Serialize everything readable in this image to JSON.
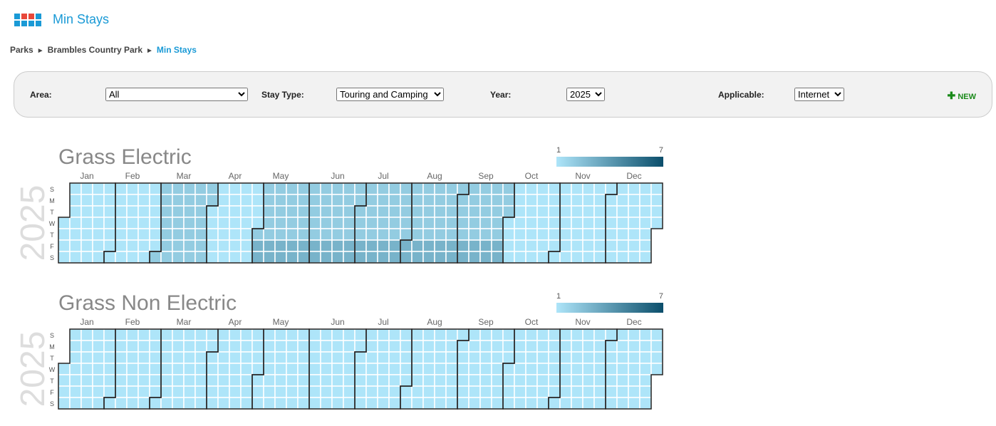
{
  "header": {
    "title": "Min Stays"
  },
  "breadcrumb": {
    "items": [
      "Parks",
      "Brambles Country Park",
      "Min Stays"
    ],
    "separator": "►"
  },
  "filters": [
    {
      "label": "Area:",
      "value": "All"
    },
    {
      "label": "Stay Type:",
      "value": "Touring and Camping"
    },
    {
      "label": "Year:",
      "value": "2025"
    },
    {
      "label": "Applicable:",
      "value": "Internet"
    }
  ],
  "new_button": {
    "label": "NEW"
  },
  "chart_data": [
    {
      "type": "calendar-heatmap",
      "title": "Grass Electric",
      "year": 2025,
      "weekdays": [
        "S",
        "M",
        "T",
        "W",
        "T",
        "F",
        "S"
      ],
      "scale": {
        "min": 1,
        "max": 7,
        "colors": [
          "#aee5f9",
          "#0b4e6b"
        ]
      },
      "months": [
        {
          "name": "Jan",
          "values": [
            1,
            1,
            1,
            1,
            1,
            1,
            1,
            1,
            1,
            1,
            1,
            1,
            1,
            1,
            1,
            1,
            1,
            1,
            1,
            1,
            1,
            1,
            1,
            1,
            1,
            1,
            1,
            1,
            1,
            1,
            1
          ]
        },
        {
          "name": "Feb",
          "values": [
            1,
            1,
            1,
            1,
            1,
            1,
            1,
            1,
            1,
            1,
            1,
            1,
            1,
            1,
            1,
            1,
            1,
            1,
            1,
            1,
            1,
            1,
            1,
            1,
            1,
            1,
            1,
            1
          ]
        },
        {
          "name": "Mar",
          "values": [
            2,
            2,
            2,
            2,
            2,
            2,
            2,
            2,
            2,
            2,
            2,
            2,
            2,
            2,
            2,
            2,
            2,
            2,
            2,
            2,
            2,
            2,
            2,
            2,
            2,
            2,
            2,
            2,
            2,
            2,
            2
          ]
        },
        {
          "name": "Apr",
          "values": [
            1,
            1,
            1,
            1,
            1,
            1,
            1,
            1,
            1,
            1,
            1,
            1,
            1,
            1,
            1,
            1,
            1,
            1,
            1,
            1,
            1,
            1,
            1,
            1,
            1,
            1,
            1,
            1,
            1,
            1
          ]
        },
        {
          "name": "May",
          "values": [
            2,
            3,
            3,
            2,
            2,
            2,
            2,
            2,
            3,
            3,
            2,
            2,
            2,
            2,
            2,
            3,
            3,
            2,
            2,
            2,
            2,
            2,
            3,
            3,
            2,
            2,
            2,
            2,
            2,
            3,
            3
          ]
        },
        {
          "name": "Jun",
          "values": [
            2,
            2,
            2,
            2,
            2,
            3,
            3,
            2,
            2,
            2,
            2,
            2,
            3,
            3,
            2,
            2,
            2,
            2,
            2,
            3,
            3,
            2,
            2,
            2,
            2,
            2,
            3,
            3,
            2,
            2
          ]
        },
        {
          "name": "Jul",
          "values": [
            2,
            2,
            2,
            3,
            3,
            2,
            2,
            2,
            2,
            2,
            3,
            3,
            2,
            2,
            2,
            2,
            2,
            3,
            3,
            2,
            2,
            2,
            2,
            2,
            3,
            3,
            2,
            2,
            2,
            2,
            2
          ]
        },
        {
          "name": "Aug",
          "values": [
            3,
            3,
            2,
            2,
            2,
            2,
            2,
            3,
            3,
            2,
            2,
            2,
            2,
            2,
            3,
            3,
            2,
            2,
            2,
            2,
            2,
            3,
            3,
            2,
            2,
            2,
            2,
            2,
            3,
            3,
            2
          ]
        },
        {
          "name": "Sep",
          "values": [
            2,
            2,
            2,
            2,
            3,
            3,
            2,
            2,
            2,
            2,
            2,
            3,
            3,
            2,
            2,
            2,
            2,
            2,
            3,
            3,
            2,
            2,
            2,
            2,
            2,
            3,
            3,
            2,
            2,
            2
          ]
        },
        {
          "name": "Oct",
          "values": [
            1,
            1,
            1,
            1,
            1,
            1,
            1,
            1,
            1,
            1,
            1,
            1,
            1,
            1,
            1,
            1,
            1,
            1,
            1,
            1,
            1,
            1,
            1,
            1,
            1,
            1,
            1,
            1,
            1,
            1,
            1
          ]
        },
        {
          "name": "Nov",
          "values": [
            1,
            1,
            1,
            1,
            1,
            1,
            1,
            1,
            1,
            1,
            1,
            1,
            1,
            1,
            1,
            1,
            1,
            1,
            1,
            1,
            1,
            1,
            1,
            1,
            1,
            1,
            1,
            1,
            1,
            1
          ]
        },
        {
          "name": "Dec",
          "values": [
            1,
            1,
            1,
            1,
            1,
            1,
            1,
            1,
            1,
            1,
            1,
            1,
            1,
            1,
            1,
            1,
            1,
            1,
            1,
            1,
            1,
            1,
            1,
            1,
            1,
            1,
            1,
            1,
            1,
            1,
            1
          ]
        }
      ]
    },
    {
      "type": "calendar-heatmap",
      "title": "Grass Non Electric",
      "year": 2025,
      "weekdays": [
        "S",
        "M",
        "T",
        "W",
        "T",
        "F",
        "S"
      ],
      "scale": {
        "min": 1,
        "max": 7,
        "colors": [
          "#aee5f9",
          "#0b4e6b"
        ]
      },
      "months": [
        {
          "name": "Jan",
          "values": [
            1,
            1,
            1,
            1,
            1,
            1,
            1,
            1,
            1,
            1,
            1,
            1,
            1,
            1,
            1,
            1,
            1,
            1,
            1,
            1,
            1,
            1,
            1,
            1,
            1,
            1,
            1,
            1,
            1,
            1,
            1
          ]
        },
        {
          "name": "Feb",
          "values": [
            1,
            1,
            1,
            1,
            1,
            1,
            1,
            1,
            1,
            1,
            1,
            1,
            1,
            1,
            1,
            1,
            1,
            1,
            1,
            1,
            1,
            1,
            1,
            1,
            1,
            1,
            1,
            1
          ]
        },
        {
          "name": "Mar",
          "values": [
            1,
            1,
            1,
            1,
            1,
            1,
            1,
            1,
            1,
            1,
            1,
            1,
            1,
            1,
            1,
            1,
            1,
            1,
            1,
            1,
            1,
            1,
            1,
            1,
            1,
            1,
            1,
            1,
            1,
            1,
            1
          ]
        },
        {
          "name": "Apr",
          "values": [
            1,
            1,
            1,
            1,
            1,
            1,
            1,
            1,
            1,
            1,
            1,
            1,
            1,
            1,
            1,
            1,
            1,
            1,
            1,
            1,
            1,
            1,
            1,
            1,
            1,
            1,
            1,
            1,
            1,
            1
          ]
        },
        {
          "name": "May",
          "values": [
            1,
            1,
            1,
            1,
            1,
            1,
            1,
            1,
            1,
            1,
            1,
            1,
            1,
            1,
            1,
            1,
            1,
            1,
            1,
            1,
            1,
            1,
            1,
            1,
            1,
            1,
            1,
            1,
            1,
            1,
            1
          ]
        },
        {
          "name": "Jun",
          "values": [
            1,
            1,
            1,
            1,
            1,
            1,
            1,
            1,
            1,
            1,
            1,
            1,
            1,
            1,
            1,
            1,
            1,
            1,
            1,
            1,
            1,
            1,
            1,
            1,
            1,
            1,
            1,
            1,
            1,
            1
          ]
        },
        {
          "name": "Jul",
          "values": [
            1,
            1,
            1,
            1,
            1,
            1,
            1,
            1,
            1,
            1,
            1,
            1,
            1,
            1,
            1,
            1,
            1,
            1,
            1,
            1,
            1,
            1,
            1,
            1,
            1,
            1,
            1,
            1,
            1,
            1,
            1
          ]
        },
        {
          "name": "Aug",
          "values": [
            1,
            1,
            1,
            1,
            1,
            1,
            1,
            1,
            1,
            1,
            1,
            1,
            1,
            1,
            1,
            1,
            1,
            1,
            1,
            1,
            1,
            1,
            1,
            1,
            1,
            1,
            1,
            1,
            1,
            1,
            1
          ]
        },
        {
          "name": "Sep",
          "values": [
            1,
            1,
            1,
            1,
            1,
            1,
            1,
            1,
            1,
            1,
            1,
            1,
            1,
            1,
            1,
            1,
            1,
            1,
            1,
            1,
            1,
            1,
            1,
            1,
            1,
            1,
            1,
            1,
            1,
            1
          ]
        },
        {
          "name": "Oct",
          "values": [
            1,
            1,
            1,
            1,
            1,
            1,
            1,
            1,
            1,
            1,
            1,
            1,
            1,
            1,
            1,
            1,
            1,
            1,
            1,
            1,
            1,
            1,
            1,
            1,
            1,
            1,
            1,
            1,
            1,
            1,
            1
          ]
        },
        {
          "name": "Nov",
          "values": [
            1,
            1,
            1,
            1,
            1,
            1,
            1,
            1,
            1,
            1,
            1,
            1,
            1,
            1,
            1,
            1,
            1,
            1,
            1,
            1,
            1,
            1,
            1,
            1,
            1,
            1,
            1,
            1,
            1,
            1
          ]
        },
        {
          "name": "Dec",
          "values": [
            1,
            1,
            1,
            1,
            1,
            1,
            1,
            1,
            1,
            1,
            1,
            1,
            1,
            1,
            1,
            1,
            1,
            1,
            1,
            1,
            1,
            1,
            1,
            1,
            1,
            1,
            1,
            1,
            1,
            1,
            1
          ]
        }
      ]
    }
  ]
}
